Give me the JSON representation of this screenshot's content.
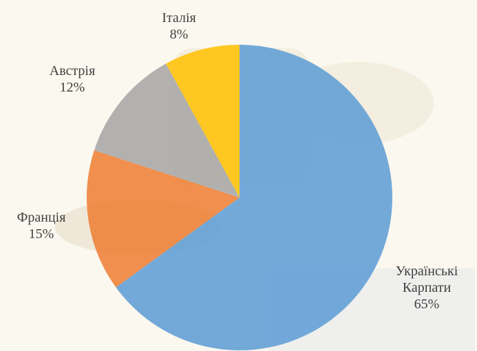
{
  "chart_data": {
    "type": "pie",
    "categories": [
      "Українські Карпати",
      "Франція",
      "Австрія",
      "Італія"
    ],
    "values": [
      65,
      15,
      12,
      8
    ],
    "value_labels": [
      "65%",
      "15%",
      "12%",
      "8%"
    ],
    "colors": [
      "#5b9bd5",
      "#ed7d31",
      "#a5a5a5",
      "#ffc000"
    ]
  }
}
